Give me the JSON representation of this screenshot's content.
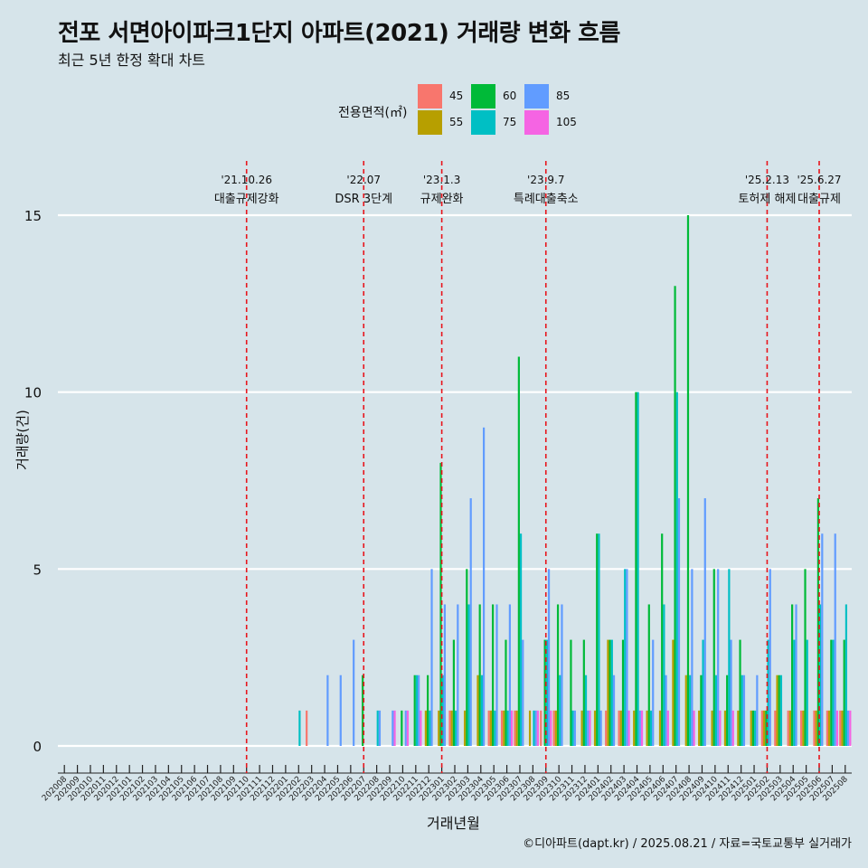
{
  "chart_data": {
    "type": "bar",
    "title": "전포 서면아이파크1단지 아파트(2021) 거래량 변화 흐름",
    "subtitle": "최근 5년 한정 확대 차트",
    "xlabel": "거래년월",
    "ylabel": "거래량(건)",
    "caption": "©디아파트(dapt.kr) / 2025.08.21 / 자료=국토교통부 실거래가",
    "ylim": [
      0,
      15
    ],
    "yticks": [
      "0",
      "5",
      "10",
      "15"
    ],
    "grid": true,
    "legend": {
      "title": "전용면적(㎡)",
      "placement": "top-center",
      "entries": [
        {
          "name": "45",
          "color": "#f8766d"
        },
        {
          "name": "55",
          "color": "#b79f00"
        },
        {
          "name": "60",
          "color": "#00ba38"
        },
        {
          "name": "75",
          "color": "#00bfc4"
        },
        {
          "name": "85",
          "color": "#619cff"
        },
        {
          "name": "105",
          "color": "#f564e3"
        }
      ]
    },
    "categories": [
      "202008",
      "202009",
      "202010",
      "202011",
      "202012",
      "202101",
      "202102",
      "202103",
      "202104",
      "202105",
      "202106",
      "202107",
      "202108",
      "202109",
      "202110",
      "202111",
      "202112",
      "202201",
      "202202",
      "202203",
      "202204",
      "202205",
      "202206",
      "202207",
      "202208",
      "202209",
      "202210",
      "202211",
      "202212",
      "202301",
      "202302",
      "202303",
      "202304",
      "202305",
      "202306",
      "202307",
      "202308",
      "202309",
      "202310",
      "202311",
      "202312",
      "202401",
      "202402",
      "202403",
      "202404",
      "202405",
      "202406",
      "202407",
      "202408",
      "202409",
      "202410",
      "202411",
      "202412",
      "202501",
      "202502",
      "202503",
      "202504",
      "202505",
      "202506",
      "202507",
      "202508"
    ],
    "series": [
      {
        "name": "45",
        "values": [
          0,
          0,
          0,
          0,
          0,
          0,
          0,
          0,
          0,
          0,
          0,
          0,
          0,
          0,
          0,
          0,
          0,
          0,
          0,
          1,
          0,
          0,
          0,
          0,
          0,
          0,
          0,
          0,
          0,
          0,
          1,
          0,
          0,
          1,
          1,
          1,
          0,
          1,
          1,
          0,
          0,
          0,
          1,
          1,
          0,
          0,
          0,
          0,
          0,
          0,
          0,
          0,
          0,
          0,
          1,
          1,
          1,
          1,
          1,
          1,
          1
        ]
      },
      {
        "name": "55",
        "values": [
          0,
          0,
          0,
          0,
          0,
          0,
          0,
          0,
          0,
          0,
          0,
          0,
          0,
          0,
          0,
          0,
          0,
          0,
          0,
          0,
          0,
          0,
          0,
          0,
          0,
          0,
          0,
          0,
          1,
          1,
          1,
          1,
          2,
          1,
          1,
          1,
          1,
          0,
          1,
          0,
          1,
          1,
          3,
          1,
          1,
          1,
          1,
          3,
          2,
          1,
          1,
          1,
          1,
          1,
          1,
          2,
          1,
          1,
          1,
          1,
          1
        ]
      },
      {
        "name": "60",
        "values": [
          0,
          0,
          0,
          0,
          0,
          0,
          0,
          0,
          0,
          0,
          0,
          0,
          0,
          0,
          0,
          0,
          0,
          0,
          0,
          0,
          0,
          0,
          0,
          2,
          0,
          0,
          1,
          2,
          2,
          8,
          3,
          5,
          4,
          4,
          3,
          11,
          0,
          3,
          4,
          3,
          3,
          6,
          3,
          3,
          10,
          4,
          6,
          13,
          15,
          2,
          5,
          2,
          3,
          1,
          1,
          2,
          4,
          5,
          7,
          3,
          3
        ]
      },
      {
        "name": "75",
        "values": [
          0,
          0,
          0,
          0,
          0,
          0,
          0,
          0,
          0,
          0,
          0,
          0,
          0,
          0,
          0,
          0,
          0,
          0,
          1,
          0,
          0,
          0,
          0,
          0,
          1,
          0,
          0,
          2,
          1,
          2,
          1,
          4,
          2,
          1,
          1,
          6,
          1,
          3,
          2,
          1,
          2,
          6,
          3,
          5,
          10,
          1,
          4,
          10,
          2,
          3,
          2,
          5,
          2,
          1,
          3,
          2,
          3,
          3,
          4,
          3,
          4
        ]
      },
      {
        "name": "85",
        "values": [
          0,
          0,
          0,
          0,
          0,
          0,
          0,
          0,
          0,
          0,
          0,
          0,
          0,
          0,
          0,
          0,
          0,
          0,
          0,
          0,
          2,
          2,
          3,
          0,
          1,
          1,
          1,
          2,
          5,
          4,
          4,
          7,
          9,
          4,
          4,
          3,
          1,
          5,
          4,
          1,
          1,
          1,
          2,
          5,
          1,
          3,
          2,
          7,
          5,
          7,
          5,
          3,
          2,
          2,
          5,
          0,
          4,
          0,
          6,
          6,
          1
        ]
      },
      {
        "name": "105",
        "values": [
          0,
          0,
          0,
          0,
          0,
          0,
          0,
          0,
          0,
          0,
          0,
          0,
          0,
          0,
          0,
          0,
          0,
          0,
          0,
          0,
          0,
          0,
          0,
          0,
          0,
          1,
          1,
          1,
          0,
          0,
          0,
          0,
          0,
          0,
          1,
          0,
          1,
          1,
          0,
          0,
          1,
          0,
          0,
          1,
          1,
          0,
          1,
          0,
          1,
          0,
          1,
          1,
          0,
          0,
          0,
          0,
          0,
          0,
          0,
          1,
          1
        ]
      }
    ],
    "events": [
      {
        "category": "202110",
        "date": "'21.10.26",
        "label": "대출규제강화"
      },
      {
        "category": "202207",
        "date": "'22.07",
        "label": "DSR 3단계"
      },
      {
        "category": "202301",
        "date": "'23.1.3",
        "label": "규제완화"
      },
      {
        "category": "202309",
        "date": "'23.9.7",
        "label": "특례대출축소"
      },
      {
        "category": "202502",
        "date": "'25.2.13",
        "label": "토허제 해제"
      },
      {
        "category": "202506",
        "date": "'25.6.27",
        "label": "대출규제"
      }
    ]
  }
}
